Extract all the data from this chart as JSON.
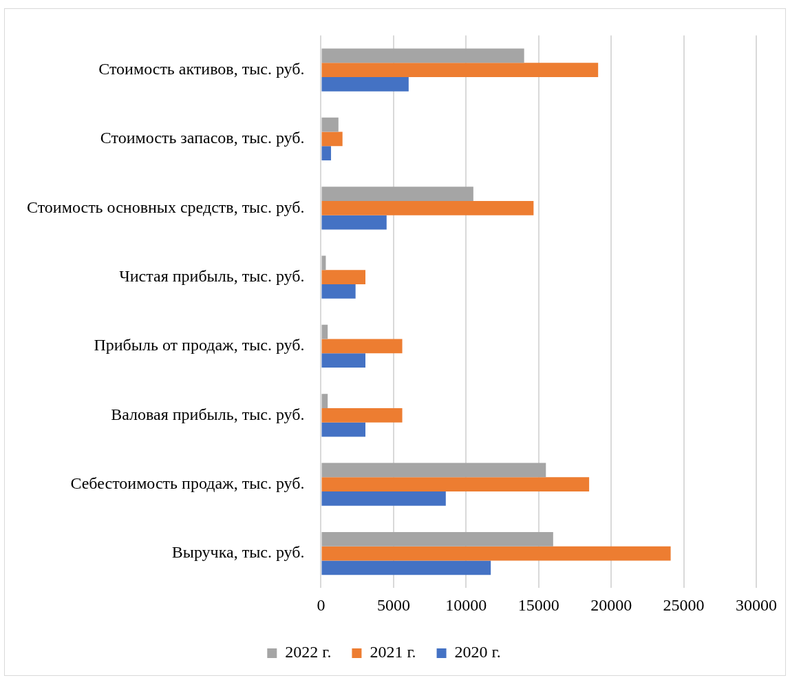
{
  "chart_data": {
    "type": "bar",
    "orientation": "horizontal",
    "categories": [
      "Стоимость активов, тыс. руб.",
      "Стоимость запасов, тыс. руб.",
      "Стоимость основных средств, тыс. руб.",
      "Чистая прибыль, тыс. руб.",
      "Прибыль от продаж, тыс. руб.",
      "Валовая прибыль, тыс. руб.",
      "Себестоимость продаж, тыс. руб.",
      "Выручка, тыс. руб."
    ],
    "series": [
      {
        "name": "2022 г.",
        "color": "#a5a5a5",
        "values": [
          14000,
          1200,
          10500,
          330,
          460,
          460,
          15500,
          16000
        ]
      },
      {
        "name": "2021 г.",
        "color": "#ed7d31",
        "values": [
          19100,
          1480,
          14650,
          3060,
          5600,
          5600,
          18480,
          24100
        ]
      },
      {
        "name": "2020 г.",
        "color": "#4472c4",
        "values": [
          6040,
          690,
          4520,
          2380,
          3060,
          3060,
          8600,
          11700
        ]
      }
    ],
    "xlim": [
      0,
      30000
    ],
    "xticks": [
      0,
      5000,
      10000,
      15000,
      20000,
      25000,
      30000
    ],
    "grid": "x",
    "legend": "bottom"
  }
}
